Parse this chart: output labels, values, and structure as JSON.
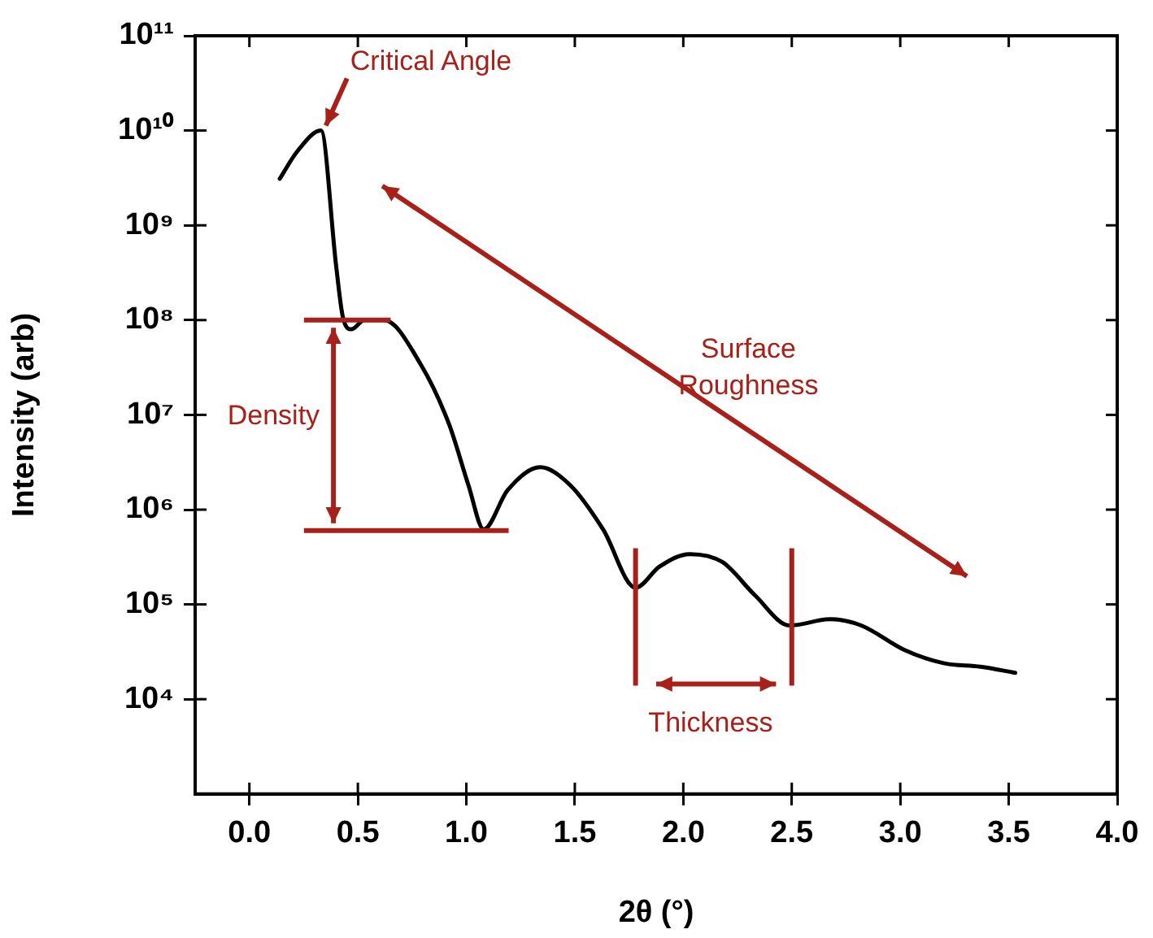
{
  "chart_data": {
    "type": "line",
    "xlabel": "2θ (°)",
    "ylabel": "Intensity (arb)",
    "log": "y",
    "grid": false,
    "legend": false,
    "line_style": "solid",
    "xlim": [
      -0.25,
      4.0
    ],
    "xticks": [
      {
        "value": 0,
        "label": "0.0"
      },
      {
        "value": 0.5,
        "label": "0.5"
      },
      {
        "value": 1,
        "label": "1.0"
      },
      {
        "value": 1.5,
        "label": "1.5"
      },
      {
        "value": 2,
        "label": "2.0"
      },
      {
        "value": 2.5,
        "label": "2.5"
      },
      {
        "value": 3,
        "label": "3.0"
      },
      {
        "value": 3.5,
        "label": "3.5"
      },
      {
        "value": 4,
        "label": "4.0"
      }
    ],
    "ylim": [
      1000,
      100000000000
    ],
    "yticks": [
      {
        "value": 10000,
        "label": "10⁴"
      },
      {
        "value": 100000,
        "label": "10⁵"
      },
      {
        "value": 1000000,
        "label": "10⁶"
      },
      {
        "value": 10000000,
        "label": "10⁷"
      },
      {
        "value": 100000000,
        "label": "10⁸"
      },
      {
        "value": 1000000000,
        "label": "10⁹"
      },
      {
        "value": 10000000000,
        "label": "10¹⁰"
      },
      {
        "value": 100000000000,
        "label": "10¹¹"
      }
    ],
    "x": [
      0.14,
      0.22,
      0.33,
      0.4,
      0.43,
      0.47,
      0.53,
      0.62,
      0.79,
      0.92,
      1.01,
      1.08,
      1.19,
      1.34,
      1.48,
      1.63,
      1.78,
      1.89,
      2.03,
      2.18,
      2.33,
      2.49,
      2.68,
      2.82,
      3.02,
      3.2,
      3.37,
      3.53
    ],
    "series": [
      {
        "color": "#000000",
        "values": [
          3100000000,
          6000000000,
          10000000000,
          370000000,
          110000000,
          80000000,
          100000000,
          100000000,
          34000000,
          8000000,
          1800000,
          620000,
          1600000,
          2800000,
          1800000,
          620000,
          150000,
          250000,
          340000,
          280000,
          125000,
          60000,
          70000,
          60000,
          33000,
          24000,
          22000,
          19000
        ]
      }
    ],
    "ref_lines": [
      {
        "axis": "y",
        "value": 100000000,
        "color": "#a8201a"
      },
      {
        "axis": "y",
        "value": 600000,
        "color": "#a8201a"
      },
      {
        "axis": "x",
        "value": 1.78,
        "color": "#a8201a"
      },
      {
        "axis": "x",
        "value": 2.5,
        "color": "#a8201a"
      }
    ],
    "annotations": [
      {
        "text": "Critical Angle",
        "x": 0.33,
        "y": 10000000000
      },
      "Surface Roughness",
      "Density",
      "Thickness"
    ]
  }
}
